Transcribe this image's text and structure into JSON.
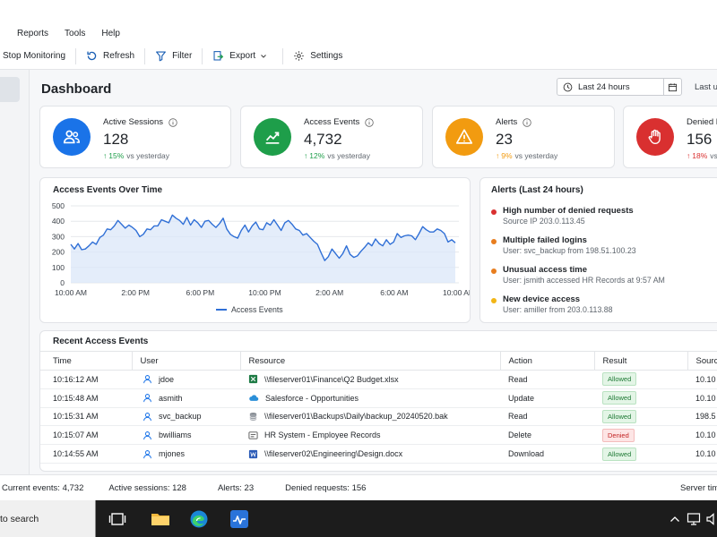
{
  "menu": [
    "Reports",
    "Tools",
    "Help"
  ],
  "toolbar": {
    "stop": "Stop Monitoring",
    "refresh": "Refresh",
    "filter": "Filter",
    "export": "Export",
    "settings": "Settings"
  },
  "header": {
    "title": "Dashboard",
    "range": "Last 24 hours",
    "last_updated": "Last up"
  },
  "kpis": [
    {
      "label": "Active Sessions",
      "value": "128",
      "pct": "15%",
      "suffix": "vs yesterday",
      "color": "#1a73e8",
      "icon": "users-icon"
    },
    {
      "label": "Access Events",
      "value": "4,732",
      "pct": "12%",
      "suffix": "vs yesterday",
      "color": "#1e9e4a",
      "icon": "trend-up-icon"
    },
    {
      "label": "Alerts",
      "value": "23",
      "pct": "9%",
      "suffix": "vs yesterday",
      "color": "#f29b10",
      "icon": "warning-icon"
    },
    {
      "label": "Denied R",
      "value": "156",
      "pct": "18%",
      "suffix": "vs",
      "color": "#d93030",
      "icon": "hand-stop-icon"
    }
  ],
  "chart": {
    "title": "Access Events Over Time",
    "legend": "Access Events"
  },
  "chart_data": {
    "type": "area",
    "title": "Access Events Over Time",
    "xlabel": "",
    "ylabel": "",
    "x_ticks": [
      "10:00 AM",
      "2:00 PM",
      "6:00 PM",
      "10:00 PM",
      "2:00 AM",
      "6:00 AM",
      "10:00 AM"
    ],
    "ylim": [
      0,
      500
    ],
    "y_ticks": [
      0,
      100,
      200,
      300,
      400,
      500
    ],
    "grid": true,
    "legend_position": "bottom",
    "series": [
      {
        "name": "Access Events",
        "color": "#2f6fd6",
        "values": [
          250,
          220,
          255,
          215,
          220,
          240,
          265,
          250,
          295,
          310,
          350,
          345,
          370,
          405,
          380,
          355,
          375,
          360,
          340,
          300,
          315,
          350,
          345,
          370,
          370,
          410,
          400,
          390,
          440,
          420,
          405,
          380,
          425,
          375,
          410,
          390,
          360,
          400,
          405,
          380,
          360,
          385,
          420,
          350,
          315,
          300,
          290,
          340,
          375,
          330,
          370,
          395,
          350,
          345,
          390,
          375,
          410,
          375,
          340,
          390,
          405,
          380,
          350,
          340,
          310,
          320,
          295,
          270,
          250,
          195,
          145,
          170,
          220,
          190,
          160,
          190,
          240,
          185,
          165,
          175,
          205,
          230,
          260,
          240,
          285,
          255,
          240,
          280,
          250,
          265,
          320,
          295,
          305,
          310,
          305,
          280,
          320,
          365,
          345,
          330,
          330,
          350,
          340,
          320,
          265,
          280,
          260
        ]
      }
    ]
  },
  "alerts": {
    "title": "Alerts (Last 24 hours)",
    "items": [
      {
        "title": "High number of denied requests",
        "detail": "Source IP 203.0.113.45",
        "color": "#d93030"
      },
      {
        "title": "Multiple failed logins",
        "detail": "User: svc_backup from 198.51.100.23",
        "color": "#e87d1e"
      },
      {
        "title": "Unusual access time",
        "detail": "User: jsmith accessed HR Records at 9:57 AM",
        "color": "#e87d1e"
      },
      {
        "title": "New device access",
        "detail": "User: amiller from 203.0.113.88",
        "color": "#f2b516"
      }
    ]
  },
  "events": {
    "title": "Recent Access Events",
    "columns": [
      "Time",
      "User",
      "Resource",
      "Action",
      "Result",
      "Sourc"
    ],
    "rows": [
      {
        "time": "10:16:12 AM",
        "user": "jdoe",
        "resource": "\\\\fileserver01\\Finance\\Q2 Budget.xlsx",
        "res_icon": "excel-file-icon",
        "action": "Read",
        "result": "Allowed",
        "source": "10.10"
      },
      {
        "time": "10:15:48 AM",
        "user": "asmith",
        "resource": "Salesforce - Opportunities",
        "res_icon": "cloud-icon",
        "action": "Update",
        "result": "Allowed",
        "source": "10.10"
      },
      {
        "time": "10:15:31 AM",
        "user": "svc_backup",
        "resource": "\\\\fileserver01\\Backups\\Daily\\backup_20240520.bak",
        "res_icon": "database-icon",
        "action": "Read",
        "result": "Allowed",
        "source": "198.5"
      },
      {
        "time": "10:15:07 AM",
        "user": "bwilliams",
        "resource": "HR System - Employee Records",
        "res_icon": "hr-system-icon",
        "action": "Delete",
        "result": "Denied",
        "source": "10.10"
      },
      {
        "time": "10:14:55 AM",
        "user": "mjones",
        "resource": "\\\\fileserver02\\Engineering\\Design.docx",
        "res_icon": "word-file-icon",
        "action": "Download",
        "result": "Allowed",
        "source": "10.10"
      }
    ]
  },
  "status": {
    "events": "Current events: 4,732",
    "sessions": "Active sessions: 128",
    "alerts": "Alerts: 23",
    "denied": "Denied requests: 156",
    "server": "Server tim"
  },
  "taskbar": {
    "search": "to search"
  }
}
